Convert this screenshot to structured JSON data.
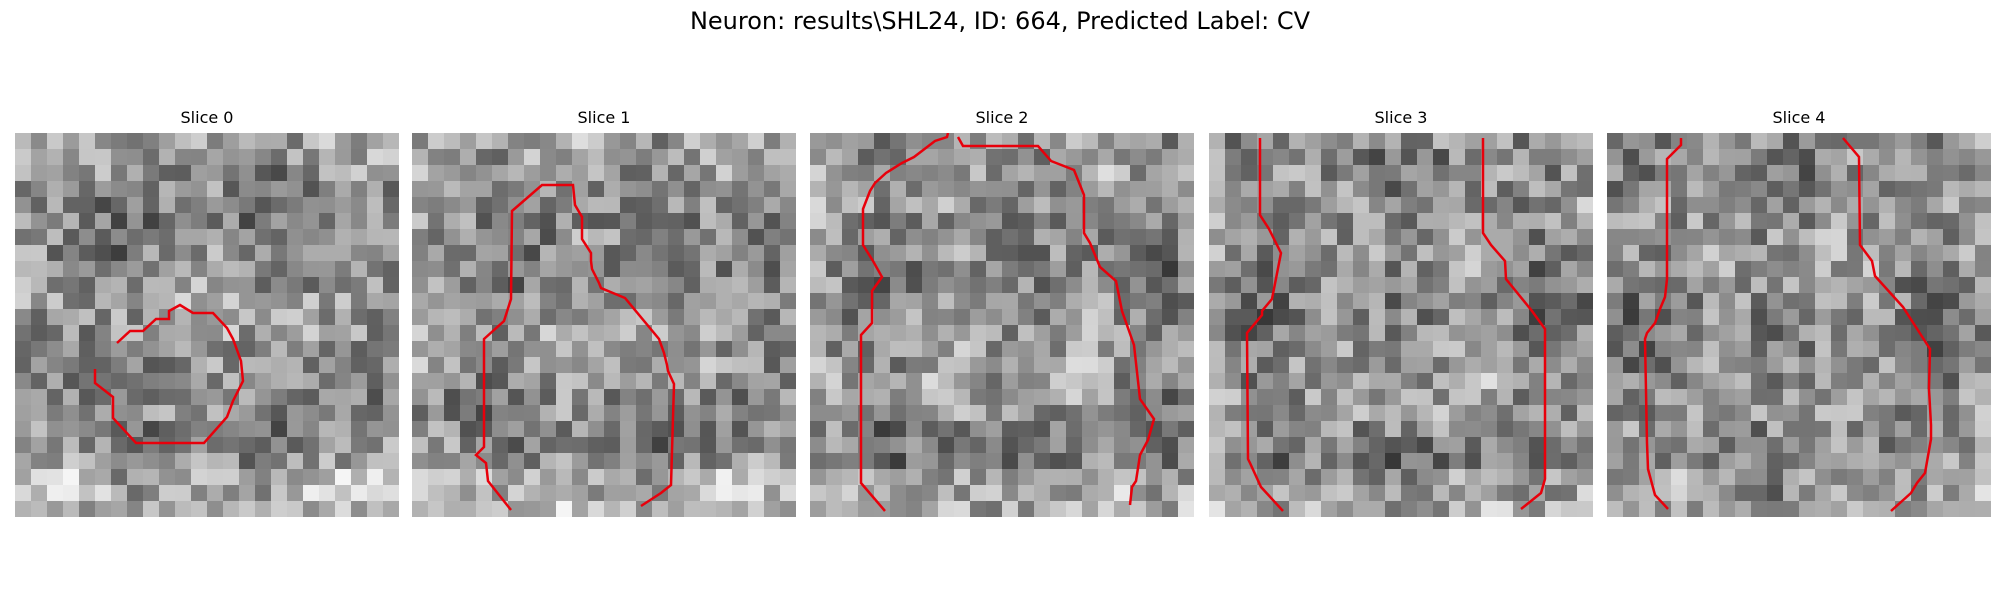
{
  "figure": {
    "title": "Neuron: results\\SHL24, ID: 664, Predicted Label: CV"
  },
  "slices": [
    {
      "title": "Slice 0"
    },
    {
      "title": "Slice 1"
    },
    {
      "title": "Slice 2"
    },
    {
      "title": "Slice 3"
    },
    {
      "title": "Slice 4"
    }
  ],
  "colors": {
    "contour": "#e8000b",
    "background": "#ffffff"
  }
}
